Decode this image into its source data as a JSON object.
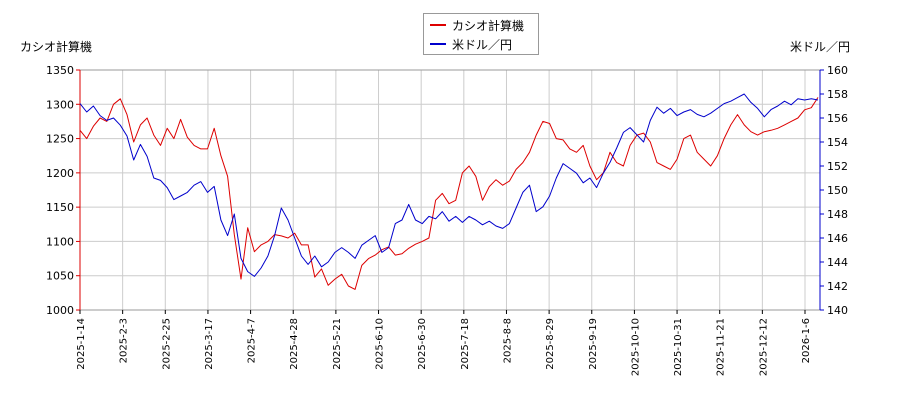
{
  "chart_data": {
    "type": "line",
    "title": "",
    "left_axis_label": "カシオ計算機",
    "right_axis_label": "米ドル／円",
    "legend_position": "top-center",
    "grid": true,
    "x_ticks": [
      "2025-1-14",
      "2025-2-3",
      "2025-2-25",
      "2025-3-17",
      "2025-4-7",
      "2025-4-28",
      "2025-5-21",
      "2025-6-10",
      "2025-6-30",
      "2025-7-18",
      "2025-8-8",
      "2025-8-29",
      "2025-9-19",
      "2025-10-10",
      "2025-10-31",
      "2025-11-21",
      "2025-12-12",
      "2026-1-6"
    ],
    "left_axis": {
      "ylim": [
        1000,
        1350
      ],
      "ticks": [
        1000,
        1050,
        1100,
        1150,
        1200,
        1250,
        1300,
        1350
      ]
    },
    "right_axis": {
      "ylim": [
        140,
        160
      ],
      "ticks": [
        140,
        142,
        144,
        146,
        148,
        150,
        152,
        154,
        156,
        158,
        160
      ]
    },
    "series": [
      {
        "name": "カシオ計算機",
        "color": "#dd0000",
        "axis": "left",
        "values": [
          1262,
          1250,
          1268,
          1280,
          1275,
          1300,
          1308,
          1285,
          1245,
          1270,
          1280,
          1255,
          1240,
          1265,
          1250,
          1278,
          1252,
          1240,
          1235,
          1235,
          1265,
          1225,
          1195,
          1110,
          1045,
          1120,
          1085,
          1095,
          1100,
          1110,
          1108,
          1105,
          1112,
          1095,
          1095,
          1048,
          1060,
          1036,
          1045,
          1052,
          1035,
          1030,
          1065,
          1075,
          1080,
          1088,
          1092,
          1080,
          1082,
          1090,
          1096,
          1100,
          1105,
          1160,
          1170,
          1155,
          1160,
          1200,
          1210,
          1195,
          1160,
          1180,
          1190,
          1182,
          1188,
          1205,
          1215,
          1230,
          1255,
          1275,
          1272,
          1250,
          1248,
          1235,
          1230,
          1240,
          1210,
          1190,
          1200,
          1230,
          1215,
          1210,
          1240,
          1255,
          1258,
          1245,
          1215,
          1210,
          1205,
          1220,
          1250,
          1255,
          1230,
          1220,
          1210,
          1225,
          1250,
          1270,
          1285,
          1270,
          1260,
          1255,
          1260,
          1262,
          1265,
          1270,
          1275,
          1280,
          1292,
          1295,
          1310
        ]
      },
      {
        "name": "米ドル／円",
        "color": "#0000cc",
        "axis": "right",
        "values": [
          157.2,
          156.5,
          157.0,
          156.2,
          155.8,
          156.0,
          155.4,
          154.5,
          152.5,
          153.8,
          152.8,
          151.0,
          150.8,
          150.2,
          149.2,
          149.5,
          149.8,
          150.4,
          150.7,
          149.8,
          150.3,
          147.5,
          146.2,
          148.0,
          144.3,
          143.2,
          142.8,
          143.5,
          144.5,
          146.2,
          148.5,
          147.5,
          146.0,
          144.5,
          143.8,
          144.5,
          143.6,
          144.0,
          144.8,
          145.2,
          144.8,
          144.3,
          145.4,
          145.8,
          146.2,
          144.8,
          145.2,
          147.2,
          147.5,
          148.8,
          147.5,
          147.2,
          147.8,
          147.6,
          148.2,
          147.4,
          147.8,
          147.3,
          147.8,
          147.5,
          147.1,
          147.4,
          147.0,
          146.8,
          147.2,
          148.5,
          149.8,
          150.4,
          148.2,
          148.6,
          149.5,
          151.0,
          152.2,
          151.8,
          151.4,
          150.6,
          151.0,
          150.2,
          151.4,
          152.3,
          153.5,
          154.8,
          155.2,
          154.6,
          154.0,
          155.8,
          156.9,
          156.4,
          156.8,
          156.2,
          156.5,
          156.7,
          156.3,
          156.1,
          156.4,
          156.8,
          157.2,
          157.4,
          157.7,
          158.0,
          157.3,
          156.8,
          156.1,
          156.7,
          157.0,
          157.4,
          157.1,
          157.6,
          157.5,
          157.6,
          157.5
        ]
      }
    ]
  }
}
